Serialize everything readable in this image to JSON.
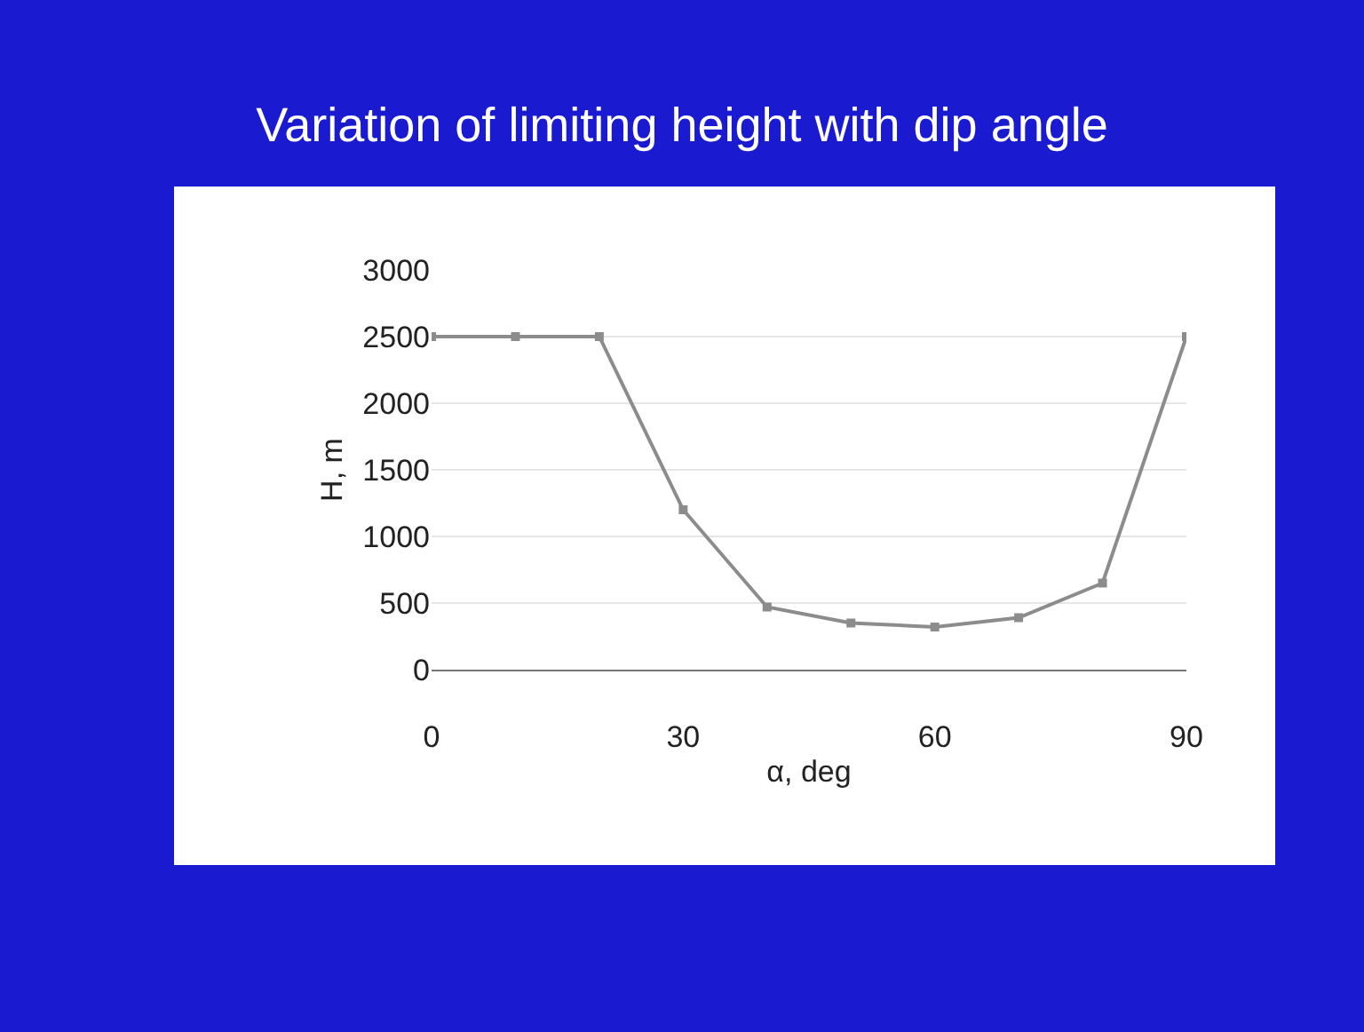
{
  "chart_data": {
    "type": "line",
    "title": "Variation of limiting height with dip angle",
    "xlabel": "α, deg",
    "ylabel": "H, m",
    "x": [
      0,
      10,
      20,
      30,
      40,
      50,
      60,
      70,
      80,
      90
    ],
    "series": [
      {
        "color": "#8c8c8c",
        "values": [
          2500,
          2500,
          2500,
          1200,
          470,
          350,
          320,
          390,
          650,
          2500
        ]
      }
    ],
    "xlim": [
      0,
      90
    ],
    "xticks": [
      0,
      30,
      60,
      90
    ],
    "ylim": [
      0,
      3000
    ],
    "yticks": [
      0,
      500,
      1000,
      1500,
      2000,
      2500,
      3000
    ],
    "grid": "y",
    "marker": "square",
    "line_style": "solid",
    "legend": false
  }
}
